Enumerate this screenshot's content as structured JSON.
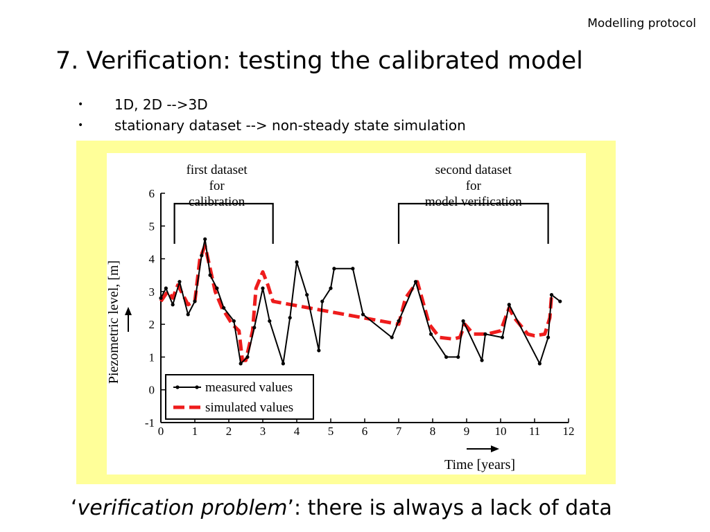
{
  "header": {
    "tag": "Modelling protocol"
  },
  "title": "7. Verification: testing the calibrated model",
  "bullets": [
    {
      "marker": "•",
      "text": "1D, 2D -->3D"
    },
    {
      "marker": "•",
      "text": "stationary dataset --> non-steady state simulation"
    }
  ],
  "footer": {
    "open_quote": "‘",
    "emphasis": "verification problem",
    "close_quote": "’",
    "rest": ": there is always a lack of data"
  },
  "colors": {
    "figure_background": "#ffff99",
    "measured": "#000000",
    "simulated": "#ee1c1c"
  },
  "chart_data": {
    "type": "line",
    "xlabel": "Time [years]",
    "ylabel": "Piezometric level, [m]",
    "xlim": [
      0,
      12
    ],
    "ylim": [
      -1,
      6
    ],
    "xticks": [
      0,
      1,
      2,
      3,
      4,
      5,
      6,
      7,
      8,
      9,
      10,
      11,
      12
    ],
    "yticks": [
      -1,
      0,
      1,
      2,
      3,
      4,
      5,
      6
    ],
    "legend": {
      "placement": "bottom-left",
      "entries": [
        "measured values",
        "simulated values"
      ]
    },
    "annotations": [
      {
        "lines": [
          "first dataset",
          "for",
          "calibration"
        ],
        "x_range": [
          0.4,
          3.3
        ]
      },
      {
        "lines": [
          "second dataset",
          "for",
          "model verification"
        ],
        "x_range": [
          7.0,
          11.4
        ]
      }
    ],
    "series": [
      {
        "name": "measured values",
        "style": "solid-with-markers",
        "x": [
          0,
          0.15,
          0.35,
          0.55,
          0.8,
          1.0,
          1.2,
          1.3,
          1.45,
          1.65,
          1.85,
          2.15,
          2.35,
          2.55,
          2.75,
          3.0,
          3.2,
          3.6,
          3.8,
          4.0,
          4.3,
          4.65,
          4.75,
          5.0,
          5.1,
          5.65,
          5.95,
          6.8,
          7.0,
          7.5,
          7.95,
          8.4,
          8.75,
          8.9,
          9.45,
          9.55,
          10.05,
          10.25,
          11.15,
          11.4,
          11.5,
          11.75
        ],
        "y": [
          2.8,
          3.1,
          2.6,
          3.3,
          2.3,
          2.7,
          4.1,
          4.6,
          3.5,
          3.1,
          2.5,
          2.1,
          0.8,
          1.0,
          1.9,
          3.1,
          2.1,
          0.8,
          2.2,
          3.9,
          2.9,
          1.2,
          2.7,
          3.1,
          3.7,
          3.7,
          2.3,
          1.6,
          2.1,
          3.3,
          1.7,
          1.0,
          1.0,
          2.1,
          0.9,
          1.7,
          1.6,
          2.6,
          0.8,
          1.6,
          2.9,
          2.7
        ]
      },
      {
        "name": "simulated values",
        "style": "dashed",
        "x": [
          0,
          0.2,
          0.35,
          0.5,
          0.6,
          0.8,
          1.0,
          1.15,
          1.3,
          1.45,
          1.6,
          1.8,
          2.1,
          2.3,
          2.4,
          2.5,
          2.7,
          2.8,
          3.0,
          3.15,
          3.3,
          7.0,
          7.2,
          7.55,
          7.9,
          8.2,
          8.6,
          8.8,
          8.95,
          9.2,
          9.6,
          10.0,
          10.25,
          10.4,
          10.8,
          11.0,
          11.3,
          11.45,
          11.5
        ],
        "y": [
          2.7,
          3.0,
          2.8,
          3.2,
          3.0,
          2.6,
          2.7,
          4.0,
          4.4,
          3.7,
          3.0,
          2.5,
          2.0,
          1.8,
          0.9,
          0.9,
          1.8,
          3.1,
          3.6,
          3.2,
          2.7,
          2.0,
          2.8,
          3.3,
          2.0,
          1.6,
          1.55,
          1.6,
          2.0,
          1.7,
          1.7,
          1.8,
          2.5,
          2.2,
          1.7,
          1.65,
          1.7,
          2.2,
          2.9
        ]
      }
    ]
  }
}
